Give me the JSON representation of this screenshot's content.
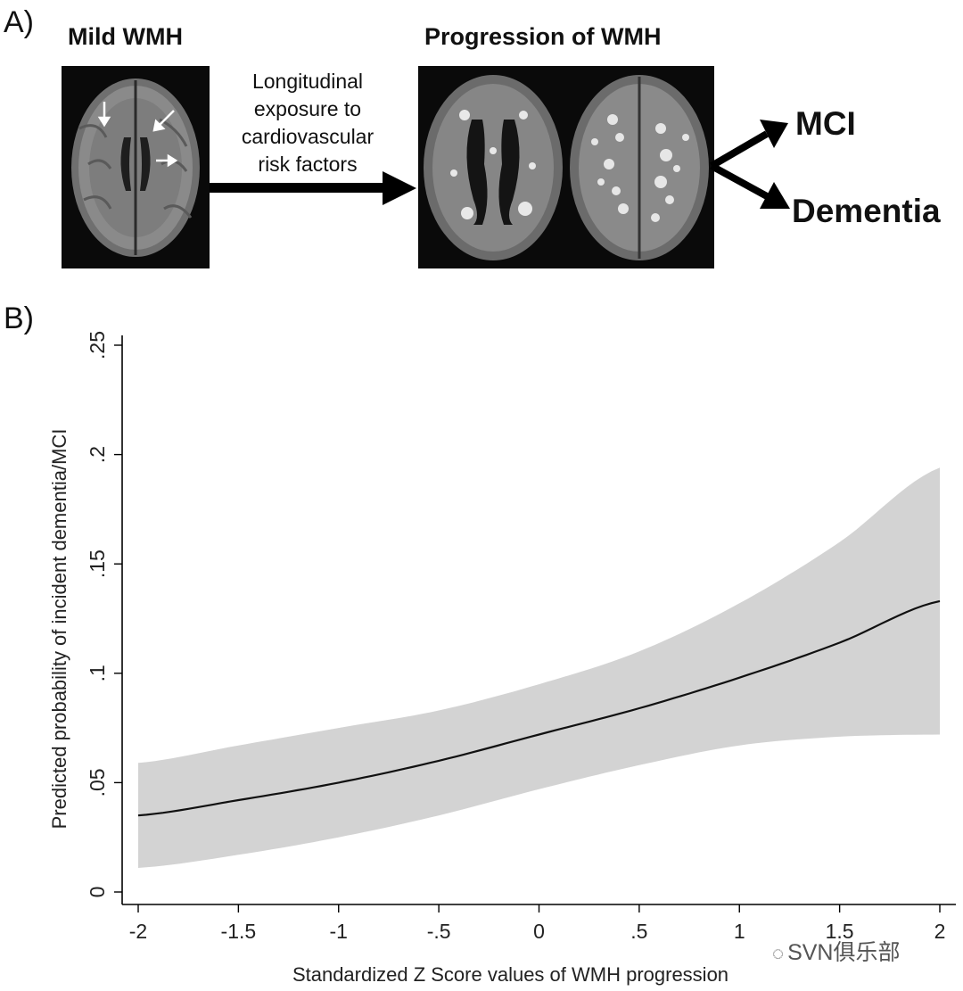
{
  "panelA": {
    "label": "A)",
    "left_title": "Mild WMH",
    "right_title": "Progression of WMH",
    "middle_text": [
      "Longitudinal",
      "exposure to",
      "cardiovascular",
      "risk factors"
    ],
    "outcomes": [
      "MCI",
      "Dementia"
    ]
  },
  "panelB": {
    "label": "B)"
  },
  "watermark": "SVN俱乐部",
  "chart_data": {
    "type": "line",
    "title": "",
    "xlabel": "Standardized Z Score values of WMH progression",
    "ylabel": "Predicted probability of incident dementia/MCI",
    "xlim": [
      -2,
      2
    ],
    "ylim": [
      0,
      0.25
    ],
    "x_ticks": [
      -2,
      -1.5,
      -1,
      -0.5,
      0,
      0.5,
      1,
      1.5,
      2
    ],
    "x_tick_labels": [
      "-2",
      "-1.5",
      "-1",
      "-.5",
      "0",
      ".5",
      "1",
      "1.5",
      "2"
    ],
    "y_ticks": [
      0,
      0.05,
      0.1,
      0.15,
      0.2,
      0.25
    ],
    "y_tick_labels": [
      "0",
      ".05",
      ".1",
      ".15",
      ".2",
      ".25"
    ],
    "grid": false,
    "series": [
      {
        "x": [
          -2,
          -1.5,
          -1,
          -0.5,
          0,
          0.5,
          1,
          1.5,
          2
        ],
        "y": [
          0.035,
          0.042,
          0.05,
          0.06,
          0.072,
          0.084,
          0.098,
          0.114,
          0.133
        ],
        "ci_lower": [
          0.011,
          0.017,
          0.025,
          0.035,
          0.047,
          0.058,
          0.067,
          0.071,
          0.072
        ],
        "ci_upper": [
          0.059,
          0.067,
          0.075,
          0.083,
          0.095,
          0.11,
          0.132,
          0.16,
          0.194
        ],
        "color": "#111111",
        "band_color": "#d3d3d3"
      }
    ]
  }
}
